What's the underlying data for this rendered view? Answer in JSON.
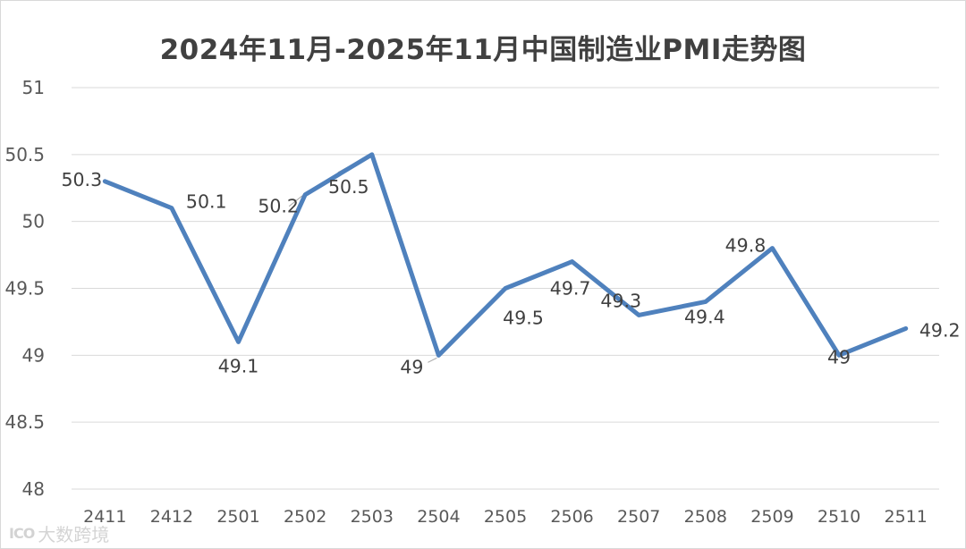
{
  "chart_data": {
    "type": "line",
    "title": "2024年11月-2025年11月中国制造业PMI走势图",
    "categories": [
      "2411",
      "2412",
      "2501",
      "2502",
      "2503",
      "2504",
      "2505",
      "2506",
      "2507",
      "2508",
      "2509",
      "2510",
      "2511"
    ],
    "series": [
      {
        "name": "PMI",
        "values": [
          50.3,
          50.1,
          49.1,
          50.2,
          50.5,
          49,
          49.5,
          49.7,
          49.3,
          49.4,
          49.8,
          49,
          49.2
        ],
        "data_labels": [
          "50.3",
          "50.1",
          "49.1",
          "50.2",
          "50.5",
          "49",
          "49.5",
          "49.7",
          "49.3",
          "49.4",
          "49.8",
          "49",
          "49.2"
        ]
      }
    ],
    "ylim": [
      48,
      51
    ],
    "y_ticks": [
      48,
      48.5,
      49,
      49.5,
      50,
      50.5,
      51
    ],
    "y_tick_labels": [
      "48",
      "48.5",
      "49",
      "49.5",
      "50",
      "50.5",
      "51"
    ],
    "grid": true,
    "legend": "none",
    "xlabel": "",
    "ylabel": "",
    "line_color": "#4f81bd"
  },
  "watermark": {
    "logo": "ICO",
    "text": "大数跨境"
  }
}
